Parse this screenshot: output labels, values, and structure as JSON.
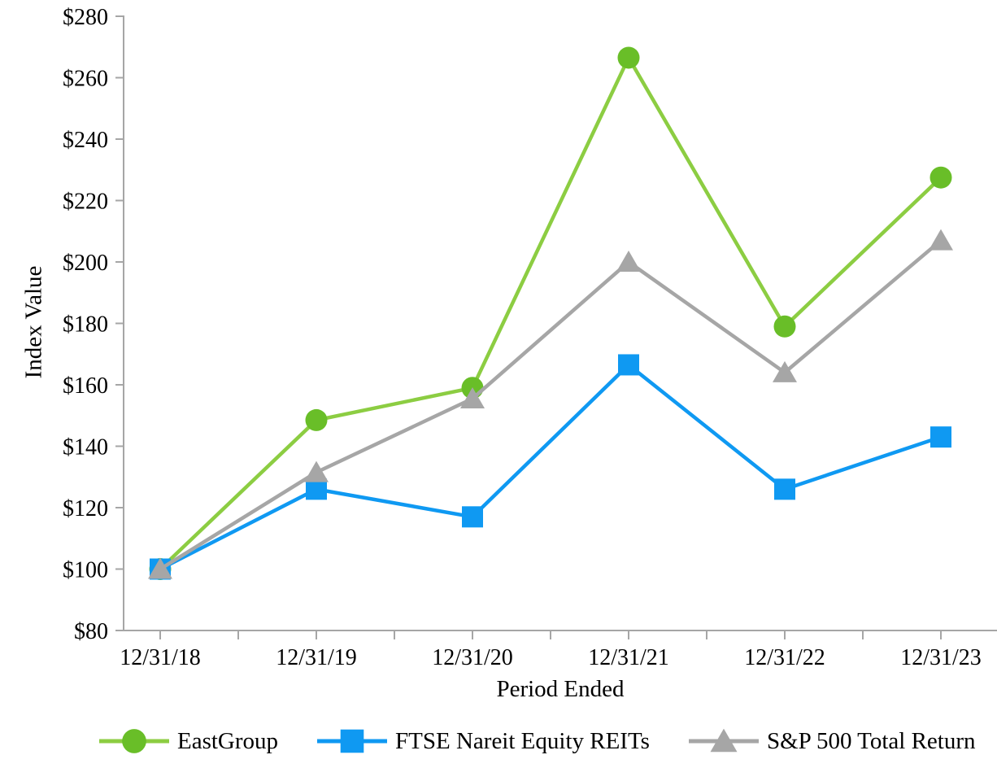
{
  "chart_data": {
    "type": "line",
    "title": "",
    "xlabel": "Period Ended",
    "ylabel": "Index Value",
    "categories": [
      "12/31/18",
      "12/31/19",
      "12/31/20",
      "12/31/21",
      "12/31/22",
      "12/31/23"
    ],
    "series": [
      {
        "name": "EastGroup",
        "marker": "circle",
        "line_color": "#8CCD42",
        "marker_color": "#69BE28",
        "values": [
          100,
          148.5,
          159,
          266.5,
          179,
          227.5
        ]
      },
      {
        "name": "FTSE Nareit Equity REITs",
        "marker": "square",
        "line_color": "#0F99F2",
        "marker_color": "#0F99F2",
        "values": [
          100,
          126,
          117,
          166.5,
          126,
          143
        ]
      },
      {
        "name": "S&P 500 Total Return",
        "marker": "triangle",
        "line_color": "#A6A6A6",
        "marker_color": "#A6A6A6",
        "values": [
          100,
          131.5,
          155.5,
          200,
          164,
          207
        ]
      }
    ],
    "ylim": [
      80,
      280
    ],
    "yticks": [
      {
        "value": 80,
        "label": "$80"
      },
      {
        "value": 100,
        "label": "$100"
      },
      {
        "value": 120,
        "label": "$120"
      },
      {
        "value": 140,
        "label": "$140"
      },
      {
        "value": 160,
        "label": "$160"
      },
      {
        "value": 180,
        "label": "$180"
      },
      {
        "value": 200,
        "label": "$200"
      },
      {
        "value": 220,
        "label": "$220"
      },
      {
        "value": 240,
        "label": "$240"
      },
      {
        "value": 260,
        "label": "$260"
      },
      {
        "value": 280,
        "label": "$280"
      }
    ],
    "x_minor_ticks_between_categories": true,
    "grid": false,
    "legend_position": "bottom",
    "axis_color": "#A6A6A6",
    "text_color": "#000000",
    "background_color": "#FFFFFF"
  }
}
